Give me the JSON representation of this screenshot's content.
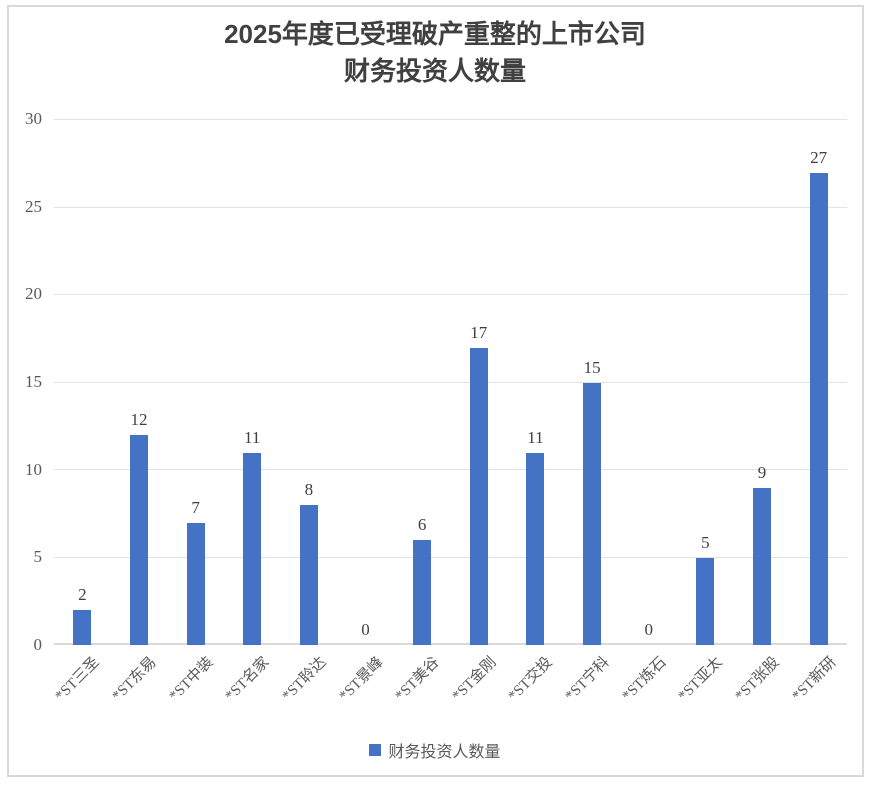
{
  "title": {
    "year": "2025",
    "line1_rest": "年度已受理破产重整的上市公司",
    "line2": "财务投资人数量"
  },
  "chart_data": {
    "type": "bar",
    "title": "2025年度已受理破产重整的上市公司财务投资人数量",
    "categories": [
      "*ST三圣",
      "*ST东易",
      "*ST中装",
      "*ST名家",
      "*ST聆达",
      "*ST景峰",
      "*ST美谷",
      "*ST金刚",
      "*ST交投",
      "*ST宁科",
      "*ST炼石",
      "*ST亚太",
      "*ST张股",
      "*ST新研"
    ],
    "values": [
      2,
      12,
      7,
      11,
      8,
      0,
      6,
      17,
      11,
      15,
      0,
      5,
      9,
      27
    ],
    "series_name": "财务投资人数量",
    "xlabel": "",
    "ylabel": "",
    "ylim": [
      0,
      30
    ],
    "yticks": [
      0,
      5,
      10,
      15,
      20,
      25,
      30
    ],
    "grid": "horizontal",
    "data_labels": true,
    "legend_position": "bottom",
    "x_label_rotation_deg": 45
  },
  "legend": {
    "label": "财务投资人数量"
  },
  "colors": {
    "bar": "#4472C4",
    "gridline": "#E2E2E2",
    "axis_line": "#D9D9D9",
    "frame_border": "#D9D9D9",
    "title_text": "#404040",
    "tick_text": "#595959",
    "data_label_text": "#404040"
  }
}
